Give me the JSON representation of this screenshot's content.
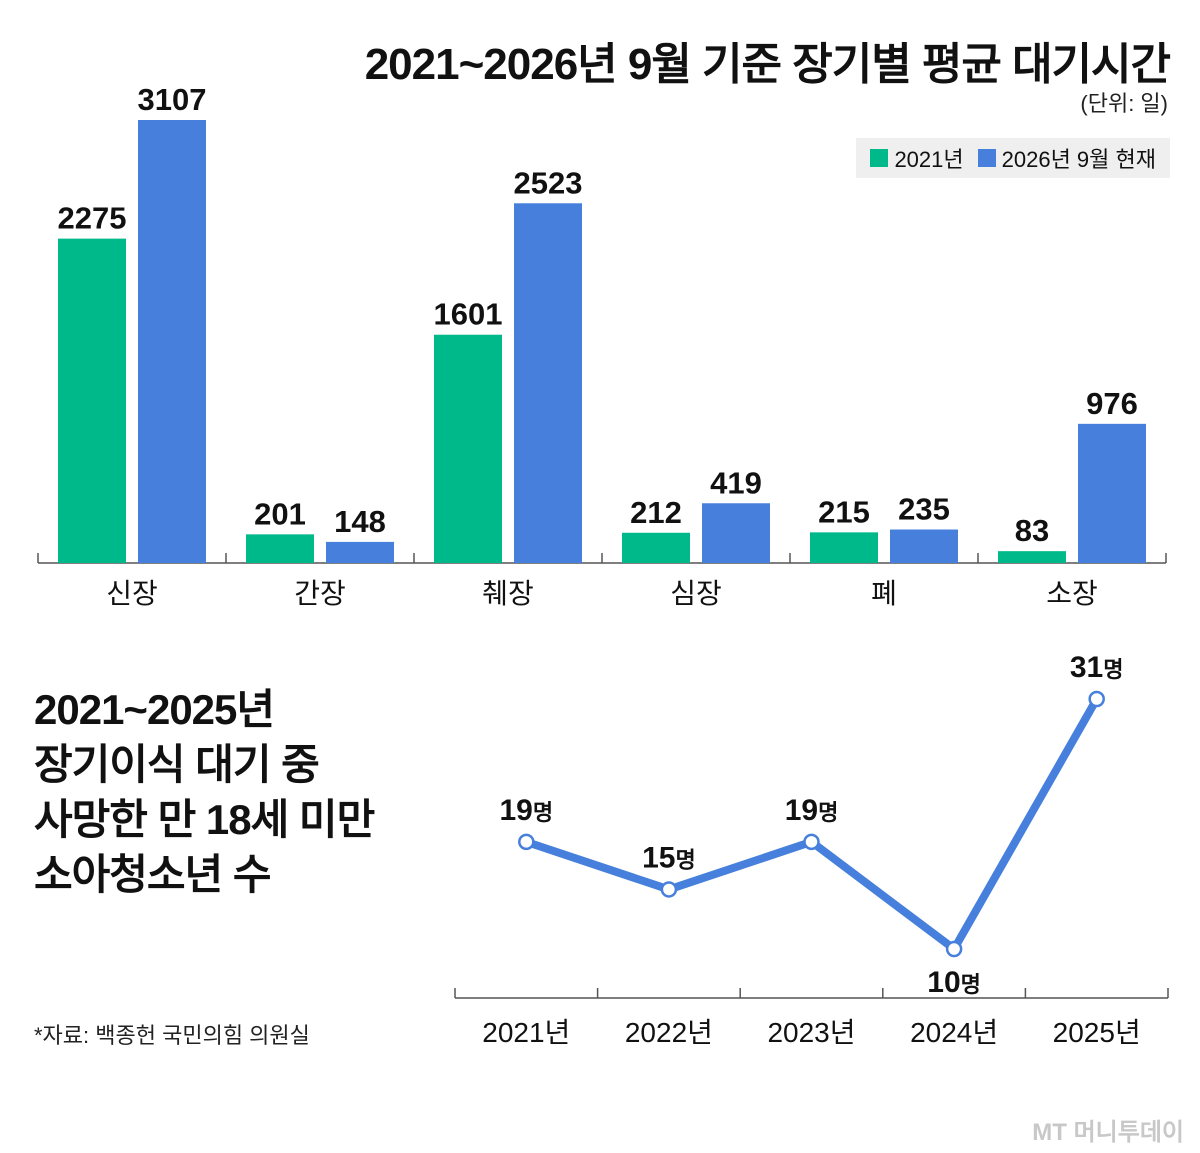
{
  "header": {
    "title": "2021~2026년 9월 기준 장기별 평균 대기시간",
    "unit": "(단위: 일)"
  },
  "colors": {
    "green": "#00b98a",
    "blue": "#4680dc",
    "axis": "#555555"
  },
  "chart_data": [
    {
      "type": "bar",
      "title": "2021~2026년 9월 기준 장기별 평균 대기시간",
      "ylabel": "(단위: 일)",
      "categories": [
        "신장",
        "간장",
        "췌장",
        "심장",
        "폐",
        "소장"
      ],
      "series": [
        {
          "name": "2021년",
          "color": "#00b98a",
          "values": [
            2275,
            201,
            1601,
            212,
            215,
            83
          ]
        },
        {
          "name": "2026년 9월 현재",
          "color": "#4680dc",
          "values": [
            3107,
            148,
            2523,
            419,
            235,
            976
          ]
        }
      ],
      "ylim": [
        0,
        3107
      ],
      "legend": "top-right",
      "grid": false
    },
    {
      "type": "line",
      "title": "2021~2025년 장기이식 대기 중 사망한 만 18세 미만 소아청소년 수",
      "x": [
        "2021년",
        "2022년",
        "2023년",
        "2024년",
        "2025년"
      ],
      "series": [
        {
          "color": "#4680dc",
          "values": [
            19,
            15,
            19,
            10,
            31
          ]
        }
      ],
      "value_unit": "명",
      "grid": false
    }
  ],
  "subtitle_lines": [
    "2021~2025년",
    "장기이식 대기 중",
    "사망한 만 18세 미만",
    "소아청소년 수"
  ],
  "source": "*자료: 백종헌 국민의힘 의원실",
  "brand": "MT 머니투데이"
}
